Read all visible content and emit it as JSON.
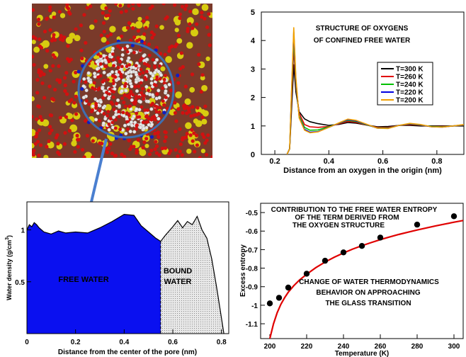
{
  "colors": {
    "free_water": "#0a10f0",
    "bound_water": "#d8d8d8",
    "arrow": "#4a7fd0",
    "fit_curve": "#e00000",
    "marker": "#000000",
    "atom_oxygen": "#d21010",
    "atom_silicon": "#d8cc10",
    "atom_hydrogen": "#e8e8e8",
    "atom_blue": "#1020c0",
    "pore_circle": "#3f6fb0"
  },
  "image": {
    "name": "md-snapshot-pore",
    "description_icon": "molecular-snapshot-icon"
  },
  "chart_data": [
    {
      "id": "rdf",
      "type": "line",
      "title_lines": [
        "STRUCTURE OF OXYGENS",
        "OF CONFINED FREE WATER"
      ],
      "xlabel": "Distance from an oxygen in the origin (nm)",
      "ylabel": "",
      "xlim": [
        0.15,
        0.9
      ],
      "ylim": [
        0,
        5
      ],
      "xticks": [
        0.2,
        0.4,
        0.6,
        0.8
      ],
      "xtick_labels": [
        "0.2",
        "0.4",
        "0.6",
        "0.8"
      ],
      "yticks": [
        0,
        1,
        2,
        3,
        4,
        5
      ],
      "ytick_labels": [
        "0",
        "1",
        "2",
        "3",
        "4",
        "5"
      ],
      "legend_position": "center-right",
      "grid": false,
      "series": [
        {
          "name": "T=300 K",
          "color": "#000000",
          "peak": 3.15,
          "min": 0.97,
          "x": [
            0.245,
            0.255,
            0.262,
            0.27,
            0.278,
            0.29,
            0.31,
            0.33,
            0.36,
            0.4,
            0.44,
            0.47,
            0.5,
            0.54,
            0.58,
            0.62,
            0.66,
            0.7,
            0.74,
            0.78,
            0.82,
            0.86,
            0.9
          ],
          "y": [
            0,
            0.2,
            1.6,
            3.15,
            2.2,
            1.5,
            1.25,
            1.15,
            1.08,
            1.02,
            1.06,
            1.12,
            1.1,
            1.03,
            0.97,
            0.98,
            1.02,
            1.02,
            1.0,
            1.0,
            1.0,
            1.0,
            1.0
          ]
        },
        {
          "name": "T=260 K",
          "color": "#e00000",
          "peak": 3.75,
          "min": 0.93,
          "x": [
            0.245,
            0.255,
            0.262,
            0.27,
            0.278,
            0.29,
            0.31,
            0.33,
            0.36,
            0.4,
            0.44,
            0.47,
            0.5,
            0.54,
            0.58,
            0.62,
            0.66,
            0.7,
            0.74,
            0.78,
            0.82,
            0.86,
            0.9
          ],
          "y": [
            0,
            0.2,
            1.9,
            3.75,
            2.4,
            1.45,
            1.05,
            0.97,
            0.95,
            0.98,
            1.08,
            1.16,
            1.13,
            1.03,
            0.95,
            0.95,
            1.02,
            1.05,
            1.02,
            0.98,
            0.98,
            1.0,
            1.02
          ]
        },
        {
          "name": "T=240 K",
          "color": "#00c000",
          "peak": 4.1,
          "min": 0.84,
          "x": [
            0.245,
            0.255,
            0.262,
            0.27,
            0.278,
            0.29,
            0.31,
            0.33,
            0.36,
            0.4,
            0.44,
            0.47,
            0.5,
            0.54,
            0.58,
            0.62,
            0.66,
            0.7,
            0.74,
            0.78,
            0.82,
            0.86,
            0.9
          ],
          "y": [
            0,
            0.2,
            2.1,
            4.1,
            2.5,
            1.35,
            0.95,
            0.85,
            0.86,
            0.97,
            1.1,
            1.2,
            1.16,
            1.04,
            0.93,
            0.93,
            1.02,
            1.07,
            1.03,
            0.98,
            0.97,
            1.0,
            1.03
          ]
        },
        {
          "name": "T=220 K",
          "color": "#0000e0",
          "peak": 4.3,
          "min": 0.78,
          "x": [
            0.245,
            0.255,
            0.262,
            0.27,
            0.278,
            0.29,
            0.31,
            0.33,
            0.36,
            0.4,
            0.44,
            0.47,
            0.5,
            0.54,
            0.58,
            0.62,
            0.66,
            0.7,
            0.74,
            0.78,
            0.82,
            0.86,
            0.9
          ],
          "y": [
            0,
            0.2,
            2.2,
            4.3,
            2.6,
            1.3,
            0.88,
            0.78,
            0.8,
            0.95,
            1.11,
            1.22,
            1.18,
            1.05,
            0.92,
            0.92,
            1.02,
            1.08,
            1.04,
            0.97,
            0.96,
            1.0,
            1.04
          ]
        },
        {
          "name": "T=200 K",
          "color": "#f0a000",
          "peak": 4.45,
          "min": 0.76,
          "x": [
            0.245,
            0.255,
            0.262,
            0.27,
            0.278,
            0.29,
            0.31,
            0.33,
            0.36,
            0.4,
            0.44,
            0.47,
            0.5,
            0.54,
            0.58,
            0.62,
            0.66,
            0.7,
            0.74,
            0.78,
            0.82,
            0.86,
            0.9
          ],
          "y": [
            0,
            0.2,
            2.3,
            4.45,
            2.7,
            1.28,
            0.85,
            0.76,
            0.79,
            0.95,
            1.12,
            1.24,
            1.2,
            1.06,
            0.92,
            0.91,
            1.02,
            1.09,
            1.05,
            0.97,
            0.96,
            1.0,
            1.05
          ]
        }
      ]
    },
    {
      "id": "density",
      "type": "area",
      "xlabel": "Distance from the center of the pore (nm)",
      "ylabel": "Water density (g/cm",
      "ylabel_sup": "3",
      "ylabel_close": ")",
      "xlim": [
        0,
        0.83
      ],
      "ylim": [
        0,
        1.27
      ],
      "xticks": [
        0,
        0.2,
        0.4,
        0.6,
        0.8
      ],
      "xtick_labels": [
        "0",
        "0.2",
        "0.4",
        "0.6",
        "0.8"
      ],
      "yticks": [
        0.5,
        1
      ],
      "ytick_labels": [
        "0.5",
        "1"
      ],
      "divider_x": 0.55,
      "regions": [
        {
          "label": "FREE WATER",
          "label_color": "#f0a050"
        },
        {
          "label_lines": [
            "BOUND",
            "WATER"
          ],
          "label_color": "#000000"
        }
      ],
      "x": [
        0,
        0.01,
        0.02,
        0.03,
        0.04,
        0.05,
        0.07,
        0.1,
        0.13,
        0.16,
        0.2,
        0.25,
        0.3,
        0.35,
        0.4,
        0.44,
        0.47,
        0.5,
        0.53,
        0.55,
        0.57,
        0.6,
        0.62,
        0.64,
        0.66,
        0.68,
        0.7,
        0.72,
        0.74,
        0.76,
        0.78,
        0.8,
        0.81
      ],
      "y": [
        1.0,
        1.05,
        1.03,
        1.07,
        1.05,
        1.02,
        0.98,
        0.96,
        0.99,
        0.97,
        0.98,
        0.97,
        1.02,
        1.08,
        1.15,
        1.14,
        1.04,
        0.98,
        0.92,
        0.89,
        0.95,
        1.03,
        1.09,
        1.02,
        1.08,
        1.05,
        1.13,
        1.0,
        0.92,
        0.72,
        0.45,
        0.15,
        0.0
      ]
    },
    {
      "id": "entropy",
      "type": "scatter",
      "title_lines": [
        "CONTRIBUTION TO THE FREE WATER ENTROPY",
        "OF THE TERM DERIVED FROM",
        "THE OXYGEN STRUCTURE"
      ],
      "annotation_lines": [
        "CHANGE OF WATER THERMODYNAMICS",
        "BEHAVIOR ON APPROACHING",
        "THE GLASS TRANSITION"
      ],
      "xlabel": "Temperature  (K)",
      "ylabel": "Excess entropy",
      "xlim": [
        195,
        305
      ],
      "ylim": [
        -1.18,
        -0.45
      ],
      "xticks": [
        200,
        220,
        240,
        260,
        280,
        300
      ],
      "xtick_labels": [
        "200",
        "220",
        "240",
        "260",
        "280",
        "300"
      ],
      "yticks": [
        -1.1,
        -1.0,
        -0.9,
        -0.8,
        -0.7,
        -0.6,
        -0.5
      ],
      "ytick_labels": [
        "-1.1",
        "-1",
        "-0.9",
        "-0.8",
        "-0.7",
        "-0.6",
        "-0.5"
      ],
      "grid": false,
      "x": [
        200,
        205,
        210,
        220,
        230,
        240,
        250,
        260,
        280,
        300
      ],
      "y": [
        -0.99,
        -0.96,
        -0.905,
        -0.83,
        -0.76,
        -0.715,
        -0.68,
        -0.635,
        -0.565,
        -0.52
      ],
      "fit": {
        "x": [
          200,
          202,
          204,
          206,
          208,
          210,
          213,
          216,
          220,
          225,
          230,
          235,
          240,
          245,
          250,
          255,
          260,
          265,
          270,
          275,
          280,
          285,
          290,
          295,
          300,
          305
        ],
        "y": [
          -1.18,
          -1.1,
          -1.04,
          -0.995,
          -0.96,
          -0.93,
          -0.895,
          -0.865,
          -0.833,
          -0.797,
          -0.767,
          -0.741,
          -0.718,
          -0.697,
          -0.679,
          -0.662,
          -0.646,
          -0.632,
          -0.618,
          -0.606,
          -0.594,
          -0.583,
          -0.572,
          -0.562,
          -0.552,
          -0.543
        ]
      }
    }
  ]
}
